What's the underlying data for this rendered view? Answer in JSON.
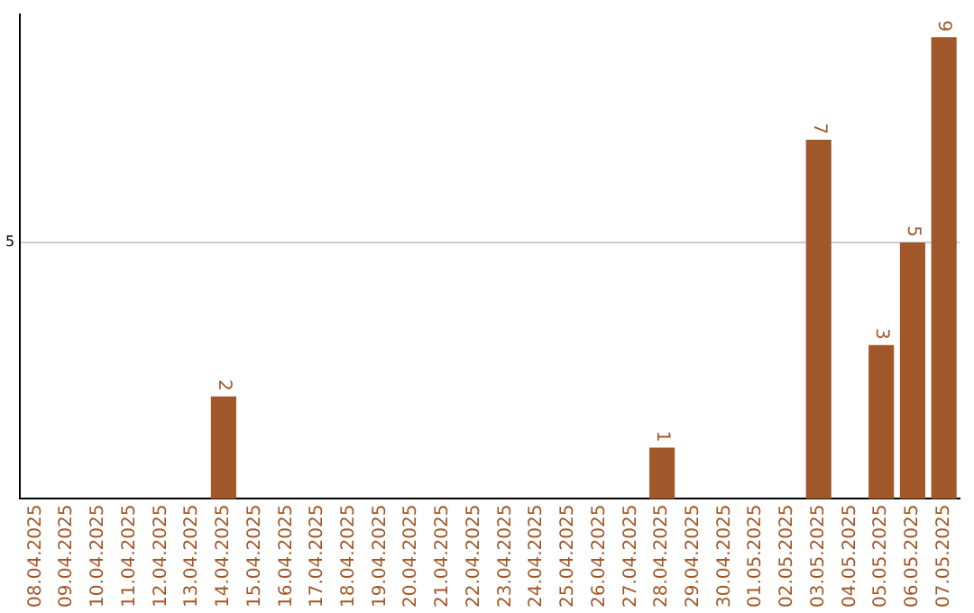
{
  "chart_data": {
    "type": "bar",
    "categories": [
      "08.04.2025",
      "09.04.2025",
      "10.04.2025",
      "11.04.2025",
      "12.04.2025",
      "13.04.2025",
      "14.04.2025",
      "15.04.2025",
      "16.04.2025",
      "17.04.2025",
      "18.04.2025",
      "19.04.2025",
      "20.04.2025",
      "21.04.2025",
      "22.04.2025",
      "23.04.2025",
      "24.04.2025",
      "25.04.2025",
      "26.04.2025",
      "27.04.2025",
      "28.04.2025",
      "29.04.2025",
      "30.04.2025",
      "01.05.2025",
      "02.05.2025",
      "03.05.2025",
      "04.05.2025",
      "05.05.2025",
      "06.05.2025",
      "07.05.2025"
    ],
    "values": [
      null,
      null,
      null,
      null,
      null,
      null,
      2,
      null,
      null,
      null,
      null,
      null,
      null,
      null,
      null,
      null,
      null,
      null,
      null,
      null,
      1,
      null,
      null,
      null,
      null,
      7,
      null,
      3,
      5,
      9
    ],
    "color": "#a0582a",
    "ylim": [
      0,
      9.45
    ],
    "yticks": [
      5
    ],
    "grid": "y",
    "data_labels": true
  }
}
